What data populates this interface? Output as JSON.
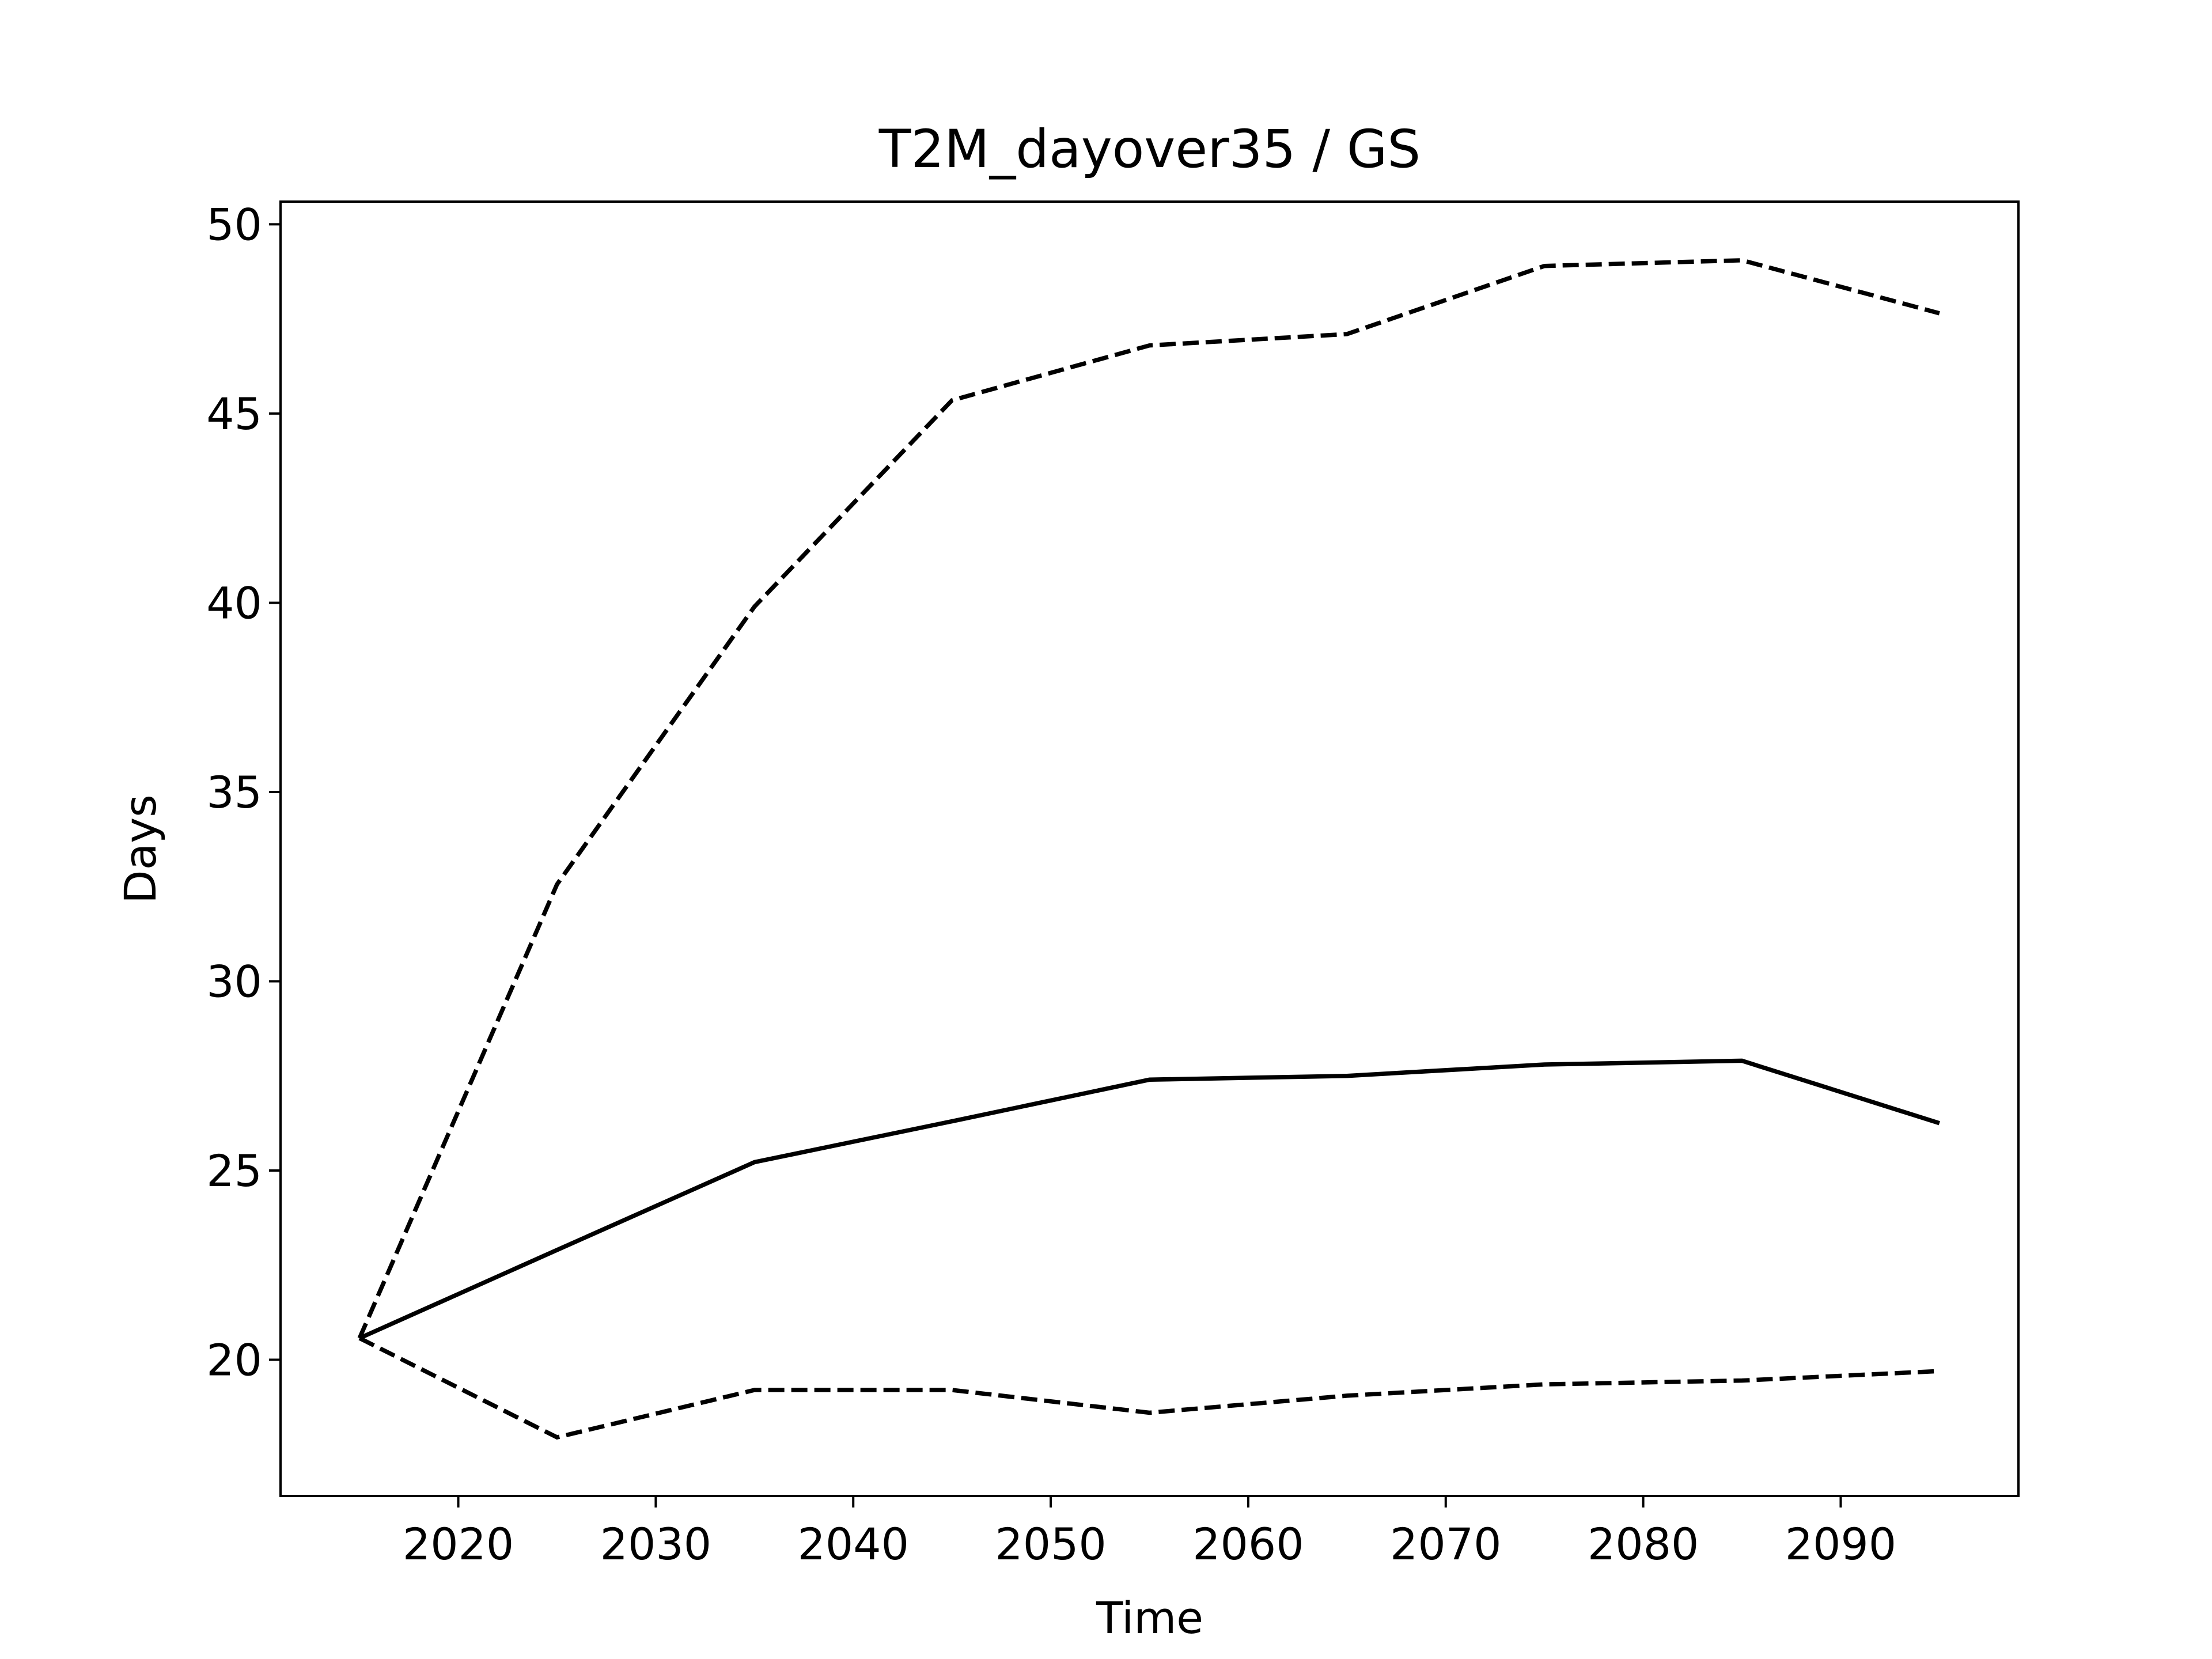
{
  "chart_data": {
    "type": "line",
    "title": "T2M_dayover35 / GS",
    "x_label": "Time",
    "y_label": "Days",
    "x": [
      2015,
      2025,
      2035,
      2045,
      2055,
      2065,
      2075,
      2085,
      2095
    ],
    "series": [
      {
        "color": "#000000",
        "dash": "solid",
        "values": [
          20.57,
          22.9,
          25.22,
          26.3,
          27.4,
          27.5,
          27.8,
          27.9,
          26.25
        ]
      },
      {
        "color": "#000000",
        "dash": "dashed",
        "values": [
          20.57,
          32.56,
          39.9,
          45.35,
          46.8,
          47.1,
          48.9,
          49.05,
          47.65
        ]
      },
      {
        "color": "#000000",
        "dash": "dashed",
        "values": [
          20.57,
          17.95,
          19.2,
          19.2,
          18.6,
          19.05,
          19.35,
          19.45,
          19.7
        ]
      }
    ],
    "xlim": [
      2011,
      2099
    ],
    "xticks": [
      2020,
      2030,
      2040,
      2050,
      2060,
      2070,
      2080,
      2090
    ],
    "ylim": [
      16.4,
      50.6
    ],
    "yticks": [
      20,
      25,
      30,
      35,
      40,
      45,
      50
    ],
    "grid": false
  }
}
